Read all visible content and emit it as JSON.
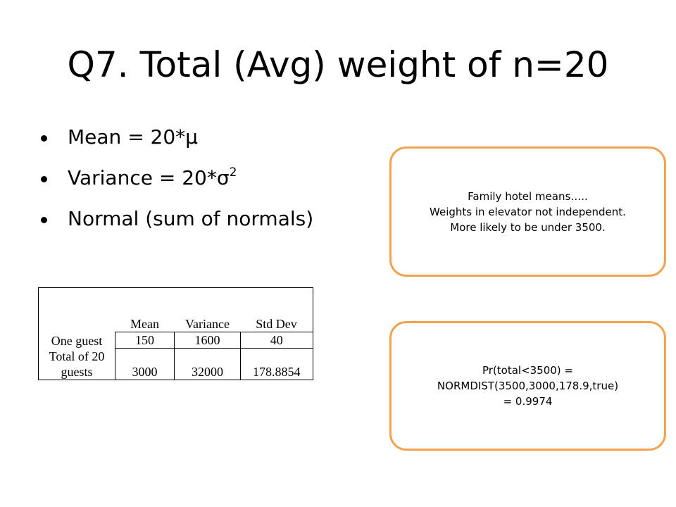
{
  "slide": {
    "title": "Q7. Total (Avg) weight of n=20",
    "bullets": [
      {
        "text": "Mean = 20*µ",
        "sup": ""
      },
      {
        "text": "Variance = 20*σ",
        "sup": "2"
      },
      {
        "text": "Normal (sum of normals)",
        "sup": ""
      }
    ]
  },
  "table": {
    "headers": [
      "Mean",
      "Variance",
      "Std Dev"
    ],
    "rows": [
      {
        "label": "One guest",
        "values": [
          "150",
          "1600",
          "40"
        ]
      },
      {
        "label": "Total of 20 guests",
        "values": [
          "3000",
          "32000",
          "178.8854"
        ]
      }
    ]
  },
  "callouts": {
    "note1": [
      "Family hotel means…..",
      "Weights in elevator not independent.",
      "More likely to be under 3500."
    ],
    "note2": [
      "Pr(total<3500) =",
      "NORMDIST(3500,3000,178.9,true)",
      "= 0.9974"
    ]
  },
  "colors": {
    "callout_border": "#f3a24e"
  }
}
